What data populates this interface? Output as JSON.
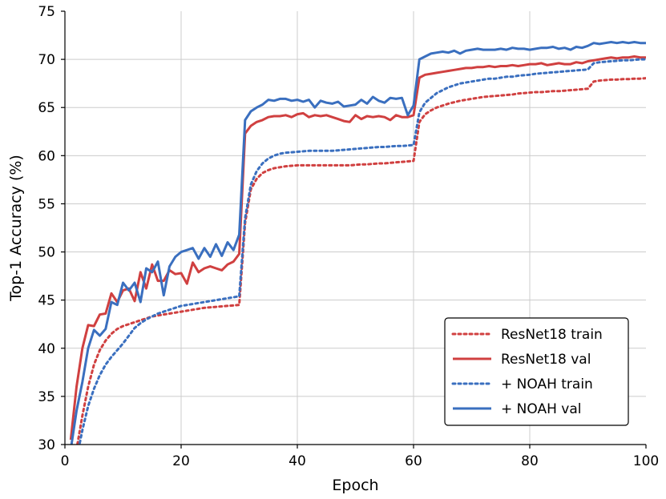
{
  "chart_data": {
    "type": "line",
    "title": "",
    "xlabel": "Epoch",
    "ylabel": "Top-1 Accuracy (%)",
    "xlim": [
      0,
      100
    ],
    "ylim": [
      30,
      75
    ],
    "xticks": [
      0,
      20,
      40,
      60,
      80,
      100
    ],
    "yticks": [
      30,
      35,
      40,
      45,
      50,
      55,
      60,
      65,
      70,
      75
    ],
    "grid": true,
    "legend_position": "bottom-right",
    "series": [
      {
        "name": "ResNet18 train",
        "color": "#d04040",
        "style": "dotted",
        "x": [
          1,
          2,
          3,
          4,
          5,
          6,
          7,
          8,
          9,
          10,
          11,
          12,
          13,
          14,
          15,
          16,
          17,
          18,
          19,
          20,
          21,
          22,
          23,
          24,
          25,
          26,
          27,
          28,
          29,
          30,
          31,
          32,
          33,
          34,
          35,
          36,
          37,
          38,
          39,
          40,
          41,
          42,
          43,
          44,
          45,
          46,
          47,
          48,
          49,
          50,
          51,
          52,
          53,
          54,
          55,
          56,
          57,
          58,
          59,
          60,
          61,
          62,
          63,
          64,
          65,
          66,
          67,
          68,
          69,
          70,
          71,
          72,
          73,
          74,
          75,
          76,
          77,
          78,
          79,
          80,
          81,
          82,
          83,
          84,
          85,
          86,
          87,
          88,
          89,
          90,
          91,
          92,
          93,
          94,
          95,
          96,
          97,
          98,
          99,
          100
        ],
        "values": [
          26.0,
          29.5,
          33.0,
          36.0,
          38.3,
          39.8,
          40.8,
          41.5,
          42.0,
          42.3,
          42.5,
          42.7,
          42.9,
          43.1,
          43.3,
          43.4,
          43.5,
          43.6,
          43.7,
          43.8,
          43.9,
          44.0,
          44.1,
          44.2,
          44.25,
          44.3,
          44.35,
          44.4,
          44.45,
          44.5,
          53.0,
          56.5,
          57.6,
          58.2,
          58.5,
          58.7,
          58.8,
          58.9,
          58.95,
          59.0,
          59.0,
          59.0,
          59.0,
          59.0,
          59.0,
          59.0,
          59.0,
          59.0,
          59.0,
          59.05,
          59.1,
          59.1,
          59.15,
          59.2,
          59.2,
          59.25,
          59.3,
          59.35,
          59.4,
          59.45,
          63.5,
          64.3,
          64.7,
          65.0,
          65.2,
          65.4,
          65.55,
          65.7,
          65.8,
          65.9,
          66.0,
          66.1,
          66.15,
          66.2,
          66.25,
          66.3,
          66.35,
          66.45,
          66.5,
          66.55,
          66.6,
          66.6,
          66.65,
          66.7,
          66.7,
          66.75,
          66.8,
          66.85,
          66.9,
          66.95,
          67.7,
          67.8,
          67.85,
          67.9,
          67.9,
          67.95,
          67.95,
          68.0,
          68.0,
          68.05
        ]
      },
      {
        "name": "ResNet18 val",
        "color": "#d04040",
        "style": "solid",
        "x": [
          1,
          2,
          3,
          4,
          5,
          6,
          7,
          8,
          9,
          10,
          11,
          12,
          13,
          14,
          15,
          16,
          17,
          18,
          19,
          20,
          21,
          22,
          23,
          24,
          25,
          26,
          27,
          28,
          29,
          30,
          31,
          32,
          33,
          34,
          35,
          36,
          37,
          38,
          39,
          40,
          41,
          42,
          43,
          44,
          45,
          46,
          47,
          48,
          49,
          50,
          51,
          52,
          53,
          54,
          55,
          56,
          57,
          58,
          59,
          60,
          61,
          62,
          63,
          64,
          65,
          66,
          67,
          68,
          69,
          70,
          71,
          72,
          73,
          74,
          75,
          76,
          77,
          78,
          79,
          80,
          81,
          82,
          83,
          84,
          85,
          86,
          87,
          88,
          89,
          90,
          91,
          92,
          93,
          94,
          95,
          96,
          97,
          98,
          99,
          100
        ],
        "values": [
          30.5,
          36.0,
          40.0,
          42.4,
          42.3,
          43.5,
          43.6,
          45.7,
          44.8,
          46.0,
          46.2,
          44.9,
          47.9,
          46.2,
          48.7,
          47.0,
          47.0,
          48.1,
          47.7,
          47.8,
          46.7,
          48.9,
          47.9,
          48.3,
          48.5,
          48.3,
          48.1,
          48.7,
          49.0,
          49.8,
          62.3,
          63.1,
          63.5,
          63.7,
          64.0,
          64.1,
          64.1,
          64.2,
          64.0,
          64.3,
          64.4,
          64.0,
          64.2,
          64.1,
          64.2,
          64.0,
          63.8,
          63.6,
          63.5,
          64.2,
          63.8,
          64.1,
          64.0,
          64.1,
          64.0,
          63.7,
          64.2,
          64.0,
          64.0,
          64.2,
          68.1,
          68.4,
          68.5,
          68.6,
          68.7,
          68.8,
          68.9,
          69.0,
          69.1,
          69.1,
          69.2,
          69.2,
          69.3,
          69.2,
          69.3,
          69.3,
          69.4,
          69.3,
          69.4,
          69.5,
          69.5,
          69.6,
          69.4,
          69.5,
          69.6,
          69.5,
          69.5,
          69.7,
          69.6,
          69.8,
          69.9,
          70.0,
          70.1,
          70.2,
          70.1,
          70.2,
          70.2,
          70.3,
          70.2,
          70.2
        ]
      },
      {
        "name": "+ NOAH train",
        "color": "#3a6fbf",
        "style": "dotted",
        "x": [
          1,
          2,
          3,
          4,
          5,
          6,
          7,
          8,
          9,
          10,
          11,
          12,
          13,
          14,
          15,
          16,
          17,
          18,
          19,
          20,
          21,
          22,
          23,
          24,
          25,
          26,
          27,
          28,
          29,
          30,
          31,
          32,
          33,
          34,
          35,
          36,
          37,
          38,
          39,
          40,
          41,
          42,
          43,
          44,
          45,
          46,
          47,
          48,
          49,
          50,
          51,
          52,
          53,
          54,
          55,
          56,
          57,
          58,
          59,
          60,
          61,
          62,
          63,
          64,
          65,
          66,
          67,
          68,
          69,
          70,
          71,
          72,
          73,
          74,
          75,
          76,
          77,
          78,
          79,
          80,
          81,
          82,
          83,
          84,
          85,
          86,
          87,
          88,
          89,
          90,
          91,
          92,
          93,
          94,
          95,
          96,
          97,
          98,
          99,
          100
        ],
        "values": [
          25.0,
          28.5,
          31.5,
          34.0,
          35.8,
          37.2,
          38.3,
          39.1,
          39.8,
          40.5,
          41.3,
          42.1,
          42.6,
          43.0,
          43.3,
          43.6,
          43.8,
          44.0,
          44.2,
          44.4,
          44.5,
          44.6,
          44.7,
          44.8,
          44.9,
          45.0,
          45.1,
          45.2,
          45.3,
          45.4,
          53.5,
          57.0,
          58.4,
          59.2,
          59.7,
          60.0,
          60.2,
          60.3,
          60.35,
          60.4,
          60.45,
          60.5,
          60.5,
          60.5,
          60.5,
          60.5,
          60.55,
          60.6,
          60.65,
          60.7,
          60.75,
          60.8,
          60.85,
          60.9,
          60.9,
          60.95,
          61.0,
          61.0,
          61.05,
          61.1,
          64.5,
          65.5,
          66.0,
          66.5,
          66.8,
          67.1,
          67.3,
          67.5,
          67.6,
          67.7,
          67.8,
          67.9,
          68.0,
          68.0,
          68.1,
          68.2,
          68.2,
          68.3,
          68.35,
          68.4,
          68.5,
          68.55,
          68.6,
          68.65,
          68.7,
          68.75,
          68.8,
          68.85,
          68.9,
          68.95,
          69.6,
          69.7,
          69.75,
          69.8,
          69.85,
          69.9,
          69.9,
          69.95,
          70.0,
          70.0
        ]
      },
      {
        "name": "+ NOAH val",
        "color": "#3a6fbf",
        "style": "solid",
        "x": [
          1,
          2,
          3,
          4,
          5,
          6,
          7,
          8,
          9,
          10,
          11,
          12,
          13,
          14,
          15,
          16,
          17,
          18,
          19,
          20,
          21,
          22,
          23,
          24,
          25,
          26,
          27,
          28,
          29,
          30,
          31,
          32,
          33,
          34,
          35,
          36,
          37,
          38,
          39,
          40,
          41,
          42,
          43,
          44,
          45,
          46,
          47,
          48,
          49,
          50,
          51,
          52,
          53,
          54,
          55,
          56,
          57,
          58,
          59,
          60,
          61,
          62,
          63,
          64,
          65,
          66,
          67,
          68,
          69,
          70,
          71,
          72,
          73,
          74,
          75,
          76,
          77,
          78,
          79,
          80,
          81,
          82,
          83,
          84,
          85,
          86,
          87,
          88,
          89,
          90,
          91,
          92,
          93,
          94,
          95,
          96,
          97,
          98,
          99,
          100
        ],
        "values": [
          29.5,
          33.5,
          36.5,
          40.0,
          41.9,
          41.3,
          42.0,
          44.8,
          44.5,
          46.8,
          46.0,
          46.8,
          44.8,
          48.3,
          47.9,
          49.0,
          45.5,
          48.5,
          49.5,
          50.0,
          50.2,
          50.4,
          49.3,
          50.4,
          49.5,
          50.8,
          49.6,
          51.0,
          50.2,
          51.8,
          63.7,
          64.6,
          65.0,
          65.3,
          65.8,
          65.7,
          65.9,
          65.9,
          65.7,
          65.8,
          65.6,
          65.8,
          65.0,
          65.7,
          65.5,
          65.4,
          65.6,
          65.1,
          65.2,
          65.3,
          65.8,
          65.4,
          66.1,
          65.7,
          65.5,
          66.0,
          65.9,
          66.0,
          64.2,
          65.2,
          70.0,
          70.3,
          70.6,
          70.7,
          70.8,
          70.7,
          70.9,
          70.6,
          70.9,
          71.0,
          71.1,
          71.0,
          71.0,
          71.0,
          71.1,
          71.0,
          71.2,
          71.1,
          71.1,
          71.0,
          71.1,
          71.2,
          71.2,
          71.3,
          71.1,
          71.2,
          71.0,
          71.3,
          71.2,
          71.4,
          71.7,
          71.6,
          71.7,
          71.8,
          71.7,
          71.8,
          71.7,
          71.8,
          71.7,
          71.7
        ]
      }
    ]
  }
}
